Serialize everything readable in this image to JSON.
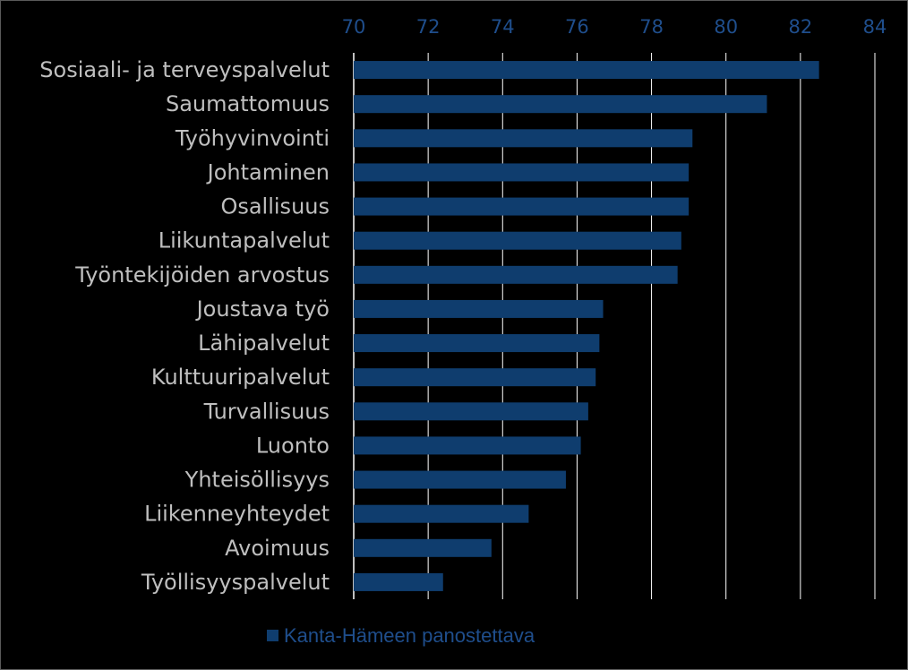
{
  "chart_data": {
    "type": "bar",
    "orientation": "horizontal",
    "categories": [
      "Sosiaali- ja terveyspalvelut",
      "Saumattomuus",
      "Työhyvinvointi",
      "Johtaminen",
      "Osallisuus",
      "Liikuntapalvelut",
      "Työntekijöiden arvostus",
      "Joustava työ",
      "Lähipalvelut",
      "Kulttuuripalvelut",
      "Turvallisuus",
      "Luonto",
      "Yhteisöllisyys",
      "Liikenneyhteydet",
      "Avoimuus",
      "Työllisyyspalvelut"
    ],
    "series": [
      {
        "name": "Kanta-Hämeen panostettava",
        "color": "#0f3d6e",
        "values": [
          82.5,
          81.1,
          79.1,
          79.0,
          79.0,
          78.8,
          78.7,
          76.7,
          76.6,
          76.5,
          76.3,
          76.1,
          75.7,
          74.7,
          73.7,
          72.4
        ]
      }
    ],
    "xlim": [
      70,
      84
    ],
    "xticks": [
      "70",
      "72",
      "74",
      "76",
      "78",
      "80",
      "82",
      "84"
    ],
    "xaxis_position": "top",
    "grid": "vertical",
    "legend_position": "bottom",
    "title": "",
    "xlabel": "",
    "ylabel": ""
  },
  "colors": {
    "background": "#000000",
    "bar": "#0f3d6e",
    "tick_text": "#1f4e8c",
    "category_text": "#bfbfbf",
    "gridline": "#ffffff"
  }
}
